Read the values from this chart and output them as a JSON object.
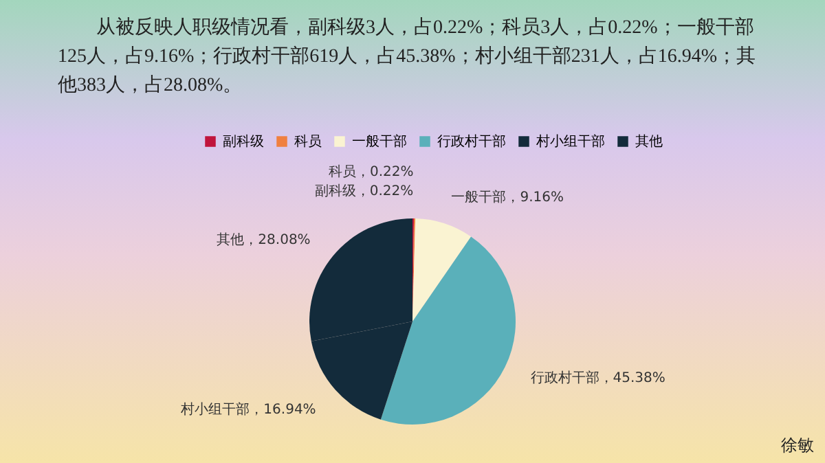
{
  "chart_data": {
    "type": "pie",
    "title": "从被反映人职级情况看，副科级3人，占0.22%；科员3人，占0.22%；一般干部125人，占9.16%；行政村干部619人，占45.38%；村小组干部231人，占16.94%；其他383人，占28.08%。",
    "categories": [
      "副科级",
      "科员",
      "一般干部",
      "行政村干部",
      "村小组干部",
      "其他"
    ],
    "values": [
      0.22,
      0.22,
      9.16,
      45.38,
      16.94,
      28.08
    ],
    "colors": [
      "#c0143c",
      "#f08040",
      "#faf3d2",
      "#5ab0ba",
      "#132b3b",
      "#132b3b"
    ],
    "value_labels": [
      "副科级，0.22%",
      "科员，0.22%",
      "一般干部，9.16%",
      "行政村干部，45.38%",
      "村小组干部，16.94%",
      "其他，28.08%"
    ],
    "legend": "top",
    "annotations": [
      "徐敏"
    ]
  }
}
